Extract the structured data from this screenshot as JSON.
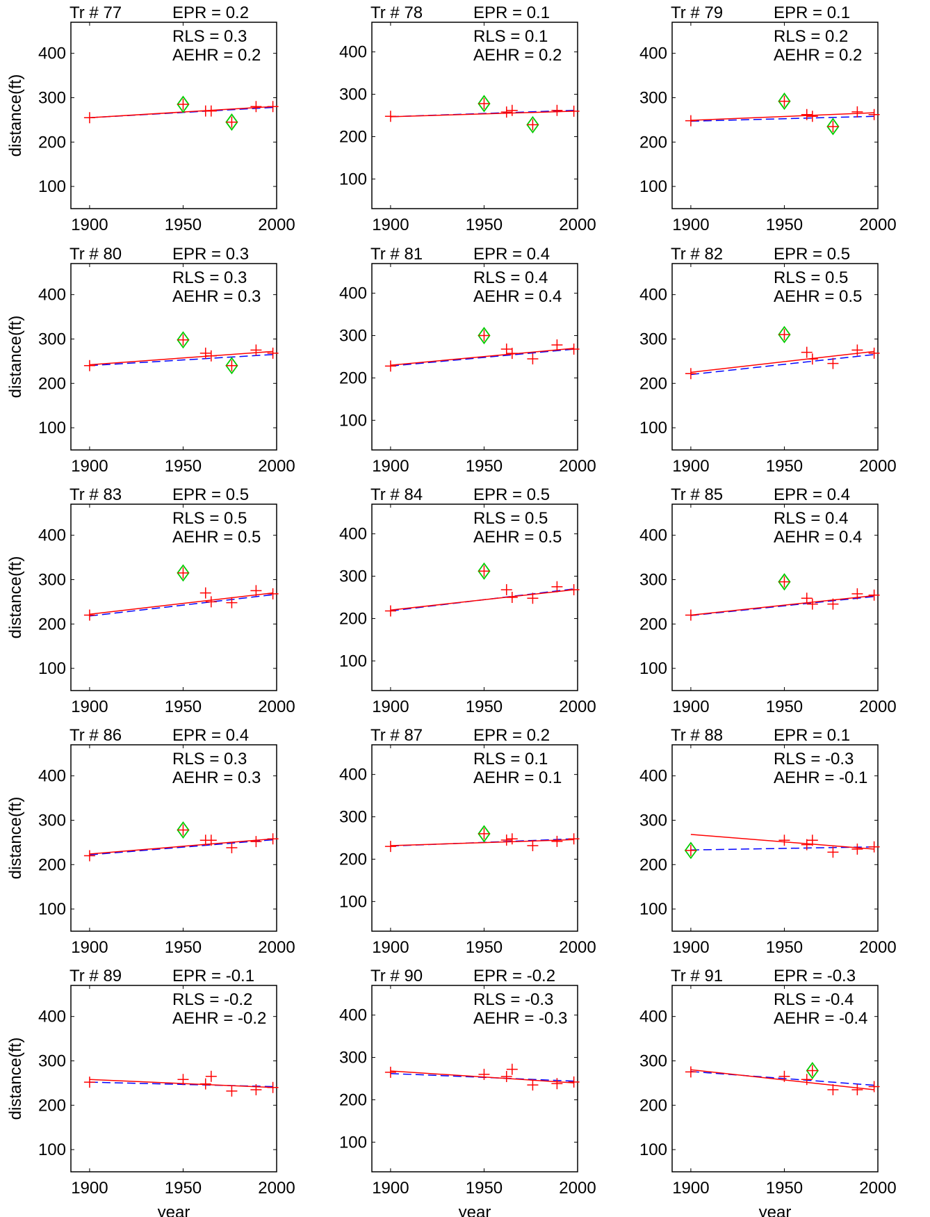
{
  "chart_data": {
    "type": "scatter",
    "layout": {
      "rows": 5,
      "cols": 3
    },
    "xlim": [
      1890,
      2000
    ],
    "ylim": [
      50,
      470
    ],
    "xticks": [
      1900,
      1950,
      2000
    ],
    "yticks": [
      100,
      200,
      300,
      400
    ],
    "xlabel": "year",
    "ylabel": "distance(ft)",
    "colors": {
      "points": "#ff0000",
      "fit": "#ff0000",
      "dashed": "#0000ff",
      "flag": "#00cc00"
    },
    "panels": [
      {
        "title": "Tr # 77",
        "epr": "EPR = 0.2",
        "rls": "RLS = 0.3",
        "aehr": "AEHR = 0.2",
        "ylim": [
          50,
          470
        ],
        "points": [
          [
            1900,
            255
          ],
          [
            1950,
            285
          ],
          [
            1962,
            270
          ],
          [
            1965,
            270
          ],
          [
            1976,
            245
          ],
          [
            1989,
            280
          ],
          [
            1998,
            280
          ]
        ],
        "flagged": [
          [
            1950,
            285
          ],
          [
            1976,
            245
          ]
        ],
        "fit_line": [
          [
            1900,
            255
          ],
          [
            1998,
            280
          ]
        ],
        "dashed_line": [
          [
            1900,
            255
          ],
          [
            1998,
            278
          ]
        ]
      },
      {
        "title": "Tr # 78",
        "epr": "EPR = 0.1",
        "rls": "RLS = 0.1",
        "aehr": "AEHR = 0.2",
        "ylim": [
          30,
          470
        ],
        "points": [
          [
            1900,
            248
          ],
          [
            1950,
            278
          ],
          [
            1962,
            258
          ],
          [
            1965,
            262
          ],
          [
            1976,
            228
          ],
          [
            1989,
            262
          ],
          [
            1998,
            260
          ]
        ],
        "flagged": [
          [
            1950,
            278
          ],
          [
            1976,
            228
          ]
        ],
        "fit_line": [
          [
            1900,
            247
          ],
          [
            1998,
            260
          ]
        ],
        "dashed_line": [
          [
            1900,
            247
          ],
          [
            1998,
            262
          ]
        ]
      },
      {
        "title": "Tr # 79",
        "epr": "EPR = 0.1",
        "rls": "RLS = 0.2",
        "aehr": "AEHR = 0.2",
        "ylim": [
          50,
          470
        ],
        "points": [
          [
            1900,
            248
          ],
          [
            1950,
            292
          ],
          [
            1962,
            262
          ],
          [
            1965,
            258
          ],
          [
            1976,
            235
          ],
          [
            1989,
            268
          ],
          [
            1998,
            262
          ]
        ],
        "flagged": [
          [
            1950,
            292
          ],
          [
            1976,
            235
          ]
        ],
        "fit_line": [
          [
            1900,
            249
          ],
          [
            1998,
            266
          ]
        ],
        "dashed_line": [
          [
            1900,
            247
          ],
          [
            1998,
            258
          ]
        ]
      },
      {
        "title": "Tr # 80",
        "epr": "EPR = 0.3",
        "rls": "RLS = 0.3",
        "aehr": "AEHR = 0.3",
        "ylim": [
          50,
          470
        ],
        "points": [
          [
            1900,
            240
          ],
          [
            1950,
            298
          ],
          [
            1962,
            268
          ],
          [
            1965,
            262
          ],
          [
            1976,
            240
          ],
          [
            1989,
            275
          ],
          [
            1998,
            268
          ]
        ],
        "flagged": [
          [
            1950,
            298
          ],
          [
            1976,
            240
          ]
        ],
        "fit_line": [
          [
            1900,
            242
          ],
          [
            1998,
            272
          ]
        ],
        "dashed_line": [
          [
            1900,
            240
          ],
          [
            1998,
            265
          ]
        ]
      },
      {
        "title": "Tr # 81",
        "epr": "EPR = 0.4",
        "rls": "RLS = 0.4",
        "aehr": "AEHR = 0.4",
        "ylim": [
          30,
          470
        ],
        "points": [
          [
            1900,
            228
          ],
          [
            1950,
            300
          ],
          [
            1962,
            268
          ],
          [
            1965,
            258
          ],
          [
            1976,
            245
          ],
          [
            1989,
            278
          ],
          [
            1998,
            268
          ]
        ],
        "flagged": [
          [
            1950,
            300
          ]
        ],
        "fit_line": [
          [
            1900,
            230
          ],
          [
            1998,
            270
          ]
        ],
        "dashed_line": [
          [
            1900,
            228
          ],
          [
            1998,
            268
          ]
        ]
      },
      {
        "title": "Tr # 82",
        "epr": "EPR = 0.5",
        "rls": "RLS = 0.5",
        "aehr": "AEHR = 0.5",
        "ylim": [
          50,
          470
        ],
        "points": [
          [
            1900,
            222
          ],
          [
            1950,
            310
          ],
          [
            1962,
            270
          ],
          [
            1965,
            255
          ],
          [
            1976,
            245
          ],
          [
            1989,
            275
          ],
          [
            1998,
            268
          ]
        ],
        "flagged": [
          [
            1950,
            310
          ]
        ],
        "fit_line": [
          [
            1900,
            225
          ],
          [
            1998,
            272
          ]
        ],
        "dashed_line": [
          [
            1900,
            220
          ],
          [
            1998,
            265
          ]
        ]
      },
      {
        "title": "Tr # 83",
        "epr": "EPR = 0.5",
        "rls": "RLS = 0.5",
        "aehr": "AEHR = 0.5",
        "ylim": [
          50,
          470
        ],
        "points": [
          [
            1900,
            220
          ],
          [
            1950,
            315
          ],
          [
            1962,
            270
          ],
          [
            1965,
            250
          ],
          [
            1976,
            248
          ],
          [
            1989,
            275
          ],
          [
            1998,
            268
          ]
        ],
        "flagged": [
          [
            1950,
            315
          ]
        ],
        "fit_line": [
          [
            1900,
            222
          ],
          [
            1998,
            270
          ]
        ],
        "dashed_line": [
          [
            1900,
            218
          ],
          [
            1998,
            266
          ]
        ]
      },
      {
        "title": "Tr # 84",
        "epr": "EPR = 0.5",
        "rls": "RLS = 0.5",
        "aehr": "AEHR = 0.5",
        "ylim": [
          30,
          470
        ],
        "points": [
          [
            1900,
            218
          ],
          [
            1950,
            312
          ],
          [
            1962,
            268
          ],
          [
            1965,
            250
          ],
          [
            1976,
            248
          ],
          [
            1989,
            275
          ],
          [
            1998,
            268
          ]
        ],
        "flagged": [
          [
            1950,
            312
          ]
        ],
        "fit_line": [
          [
            1900,
            220
          ],
          [
            1998,
            268
          ]
        ],
        "dashed_line": [
          [
            1900,
            218
          ],
          [
            1998,
            270
          ]
        ]
      },
      {
        "title": "Tr # 85",
        "epr": "EPR = 0.4",
        "rls": "RLS = 0.4",
        "aehr": "AEHR = 0.4",
        "ylim": [
          50,
          470
        ],
        "points": [
          [
            1900,
            220
          ],
          [
            1950,
            295
          ],
          [
            1962,
            258
          ],
          [
            1965,
            245
          ],
          [
            1976,
            245
          ],
          [
            1989,
            268
          ],
          [
            1998,
            265
          ]
        ],
        "flagged": [
          [
            1950,
            295
          ]
        ],
        "fit_line": [
          [
            1900,
            220
          ],
          [
            1998,
            264
          ]
        ],
        "dashed_line": [
          [
            1900,
            219
          ],
          [
            1998,
            262
          ]
        ]
      },
      {
        "title": "Tr # 86",
        "epr": "EPR = 0.4",
        "rls": "RLS = 0.3",
        "aehr": "AEHR = 0.3",
        "ylim": [
          50,
          470
        ],
        "points": [
          [
            1900,
            220
          ],
          [
            1950,
            278
          ],
          [
            1962,
            255
          ],
          [
            1965,
            255
          ],
          [
            1976,
            238
          ],
          [
            1989,
            252
          ],
          [
            1998,
            258
          ]
        ],
        "flagged": [
          [
            1950,
            278
          ]
        ],
        "fit_line": [
          [
            1900,
            224
          ],
          [
            1998,
            258
          ]
        ],
        "dashed_line": [
          [
            1900,
            222
          ],
          [
            1998,
            256
          ]
        ]
      },
      {
        "title": "Tr # 87",
        "epr": "EPR = 0.2",
        "rls": "RLS = 0.1",
        "aehr": "AEHR = 0.1",
        "ylim": [
          30,
          470
        ],
        "points": [
          [
            1900,
            230
          ],
          [
            1950,
            260
          ],
          [
            1962,
            245
          ],
          [
            1965,
            248
          ],
          [
            1976,
            232
          ],
          [
            1989,
            242
          ],
          [
            1998,
            248
          ]
        ],
        "flagged": [
          [
            1950,
            260
          ]
        ],
        "fit_line": [
          [
            1900,
            232
          ],
          [
            1998,
            246
          ]
        ],
        "dashed_line": [
          [
            1900,
            231
          ],
          [
            1998,
            248
          ]
        ]
      },
      {
        "title": "Tr # 88",
        "epr": "EPR = 0.1",
        "rls": "RLS = -0.3",
        "aehr": "AEHR = -0.1",
        "ylim": [
          50,
          470
        ],
        "points": [
          [
            1900,
            232
          ],
          [
            1950,
            255
          ],
          [
            1962,
            245
          ],
          [
            1965,
            255
          ],
          [
            1976,
            228
          ],
          [
            1989,
            235
          ],
          [
            1998,
            240
          ]
        ],
        "flagged": [
          [
            1900,
            232
          ]
        ],
        "fit_line": [
          [
            1900,
            268
          ],
          [
            1998,
            235
          ]
        ],
        "dashed_line": [
          [
            1900,
            233
          ],
          [
            1998,
            240
          ]
        ]
      },
      {
        "title": "Tr # 89",
        "epr": "EPR = -0.1",
        "rls": "RLS = -0.2",
        "aehr": "AEHR = -0.2",
        "ylim": [
          50,
          470
        ],
        "points": [
          [
            1900,
            252
          ],
          [
            1950,
            258
          ],
          [
            1962,
            248
          ],
          [
            1965,
            265
          ],
          [
            1976,
            232
          ],
          [
            1989,
            235
          ],
          [
            1998,
            240
          ]
        ],
        "flagged": [],
        "fit_line": [
          [
            1900,
            258
          ],
          [
            1998,
            240
          ]
        ],
        "dashed_line": [
          [
            1900,
            252
          ],
          [
            1998,
            242
          ]
        ]
      },
      {
        "title": "Tr # 90",
        "epr": "EPR = -0.2",
        "rls": "RLS = -0.3",
        "aehr": "AEHR = -0.3",
        "ylim": [
          30,
          470
        ],
        "points": [
          [
            1900,
            265
          ],
          [
            1950,
            260
          ],
          [
            1962,
            255
          ],
          [
            1965,
            272
          ],
          [
            1976,
            235
          ],
          [
            1989,
            238
          ],
          [
            1998,
            242
          ]
        ],
        "flagged": [],
        "fit_line": [
          [
            1900,
            268
          ],
          [
            1998,
            240
          ]
        ],
        "dashed_line": [
          [
            1900,
            262
          ],
          [
            1998,
            244
          ]
        ]
      },
      {
        "title": "Tr # 91",
        "epr": "EPR = -0.3",
        "rls": "RLS = -0.4",
        "aehr": "AEHR = -0.4",
        "ylim": [
          50,
          470
        ],
        "points": [
          [
            1900,
            275
          ],
          [
            1950,
            265
          ],
          [
            1962,
            258
          ],
          [
            1965,
            278
          ],
          [
            1976,
            235
          ],
          [
            1989,
            235
          ],
          [
            1998,
            242
          ]
        ],
        "flagged": [
          [
            1965,
            278
          ]
        ],
        "fit_line": [
          [
            1900,
            280
          ],
          [
            1998,
            235
          ]
        ],
        "dashed_line": [
          [
            1900,
            276
          ],
          [
            1998,
            245
          ]
        ]
      }
    ]
  }
}
